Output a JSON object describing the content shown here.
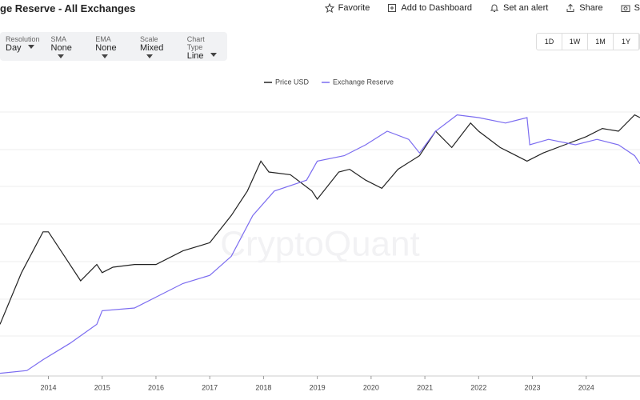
{
  "header": {
    "title": "ge Reserve - All Exchanges",
    "actions": [
      "Favorite",
      "Add to Dashboard",
      "Set an alert",
      "Share",
      "S"
    ]
  },
  "controls": [
    {
      "label": "Resolution",
      "value": "Day"
    },
    {
      "label": "SMA",
      "value": "None"
    },
    {
      "label": "EMA",
      "value": "None"
    },
    {
      "label": "Scale",
      "value": "Mixed"
    },
    {
      "label": "Chart Type",
      "value": "Line"
    }
  ],
  "ranges": [
    "1D",
    "1W",
    "1M",
    "1Y"
  ],
  "chart_data": {
    "type": "line",
    "watermark": "CryptoQuant",
    "xlim": [
      2013.1,
      2025
    ],
    "xticks": [
      2014,
      2015,
      2016,
      2017,
      2018,
      2019,
      2020,
      2021,
      2022,
      2023,
      2024
    ],
    "ylim": [
      0,
      100
    ],
    "legend": "top",
    "series": [
      {
        "name": "Price USD",
        "color": "#222222",
        "x": [
          2013.1,
          2013.5,
          2013.9,
          2014.0,
          2014.3,
          2014.6,
          2014.9,
          2015.0,
          2015.2,
          2015.6,
          2016.0,
          2016.5,
          2017.0,
          2017.4,
          2017.7,
          2017.95,
          2018.1,
          2018.5,
          2018.9,
          2019.0,
          2019.4,
          2019.6,
          2019.9,
          2020.2,
          2020.5,
          2020.9,
          2021.2,
          2021.5,
          2021.85,
          2022.0,
          2022.4,
          2022.6,
          2022.9,
          2023.2,
          2023.6,
          2024.0,
          2024.3,
          2024.6,
          2024.9,
          2025.0
        ],
        "values": [
          19,
          38,
          53,
          53,
          44,
          35,
          41,
          38,
          40,
          41,
          41,
          46,
          49,
          59,
          68,
          79,
          75,
          74,
          68,
          65,
          75,
          76,
          72,
          69,
          76,
          81,
          90,
          84,
          93,
          90,
          84,
          82,
          79,
          82,
          85,
          88,
          91,
          90,
          96,
          95
        ]
      },
      {
        "name": "Exchange Reserve",
        "color": "#7b6cf0",
        "x": [
          2013.1,
          2013.6,
          2013.9,
          2014.4,
          2014.9,
          2015.0,
          2015.6,
          2016.0,
          2016.5,
          2017.0,
          2017.4,
          2017.8,
          2018.2,
          2018.8,
          2019.0,
          2019.5,
          2019.9,
          2020.3,
          2020.7,
          2020.9,
          2021.2,
          2021.6,
          2022.0,
          2022.5,
          2022.9,
          2022.95,
          2023.3,
          2023.8,
          2024.2,
          2024.6,
          2024.9,
          2025.0
        ],
        "values": [
          1,
          2,
          6,
          12,
          19,
          24,
          25,
          29,
          34,
          37,
          44,
          59,
          68,
          72,
          79,
          81,
          85,
          90,
          87,
          82,
          90,
          96,
          95,
          93,
          95,
          85,
          87,
          85,
          87,
          85,
          81,
          78
        ]
      }
    ]
  }
}
